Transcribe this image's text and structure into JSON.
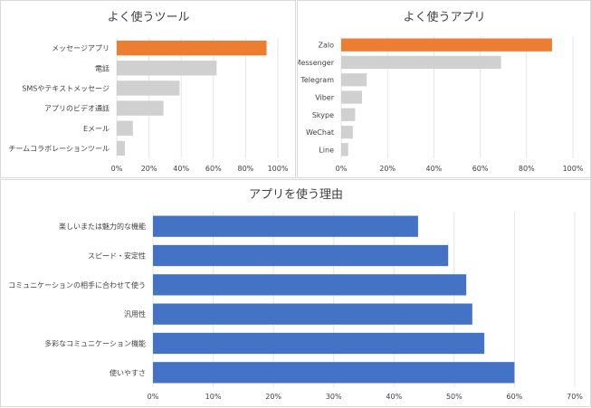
{
  "chart_data": [
    {
      "type": "bar",
      "orientation": "horizontal",
      "title": "よく使うツール",
      "categories": [
        "メッセージアプリ",
        "電話",
        "SMSやテキストメッセージ",
        "アプリのビデオ通話",
        "Eメール",
        "チームコラボレーションツール"
      ],
      "values": [
        93,
        62,
        39,
        29,
        10,
        5
      ],
      "xlim": [
        0,
        100
      ],
      "x_ticks": [
        "0%",
        "20%",
        "40%",
        "60%",
        "80%",
        "100%"
      ],
      "tick_values": [
        0,
        20,
        40,
        60,
        80,
        100
      ],
      "highlight_color": "#ed7d31",
      "bar_color": "#d0d0d0",
      "highlight_index": 0,
      "grid": true
    },
    {
      "type": "bar",
      "orientation": "horizontal",
      "title": "よく使うアプリ",
      "categories": [
        "Zalo",
        "Messenger",
        "Telegram",
        "Viber",
        "Skype",
        "WeChat",
        "Line"
      ],
      "values": [
        91,
        69,
        11,
        9,
        6,
        5,
        3
      ],
      "xlim": [
        0,
        100
      ],
      "x_ticks": [
        "0%",
        "20%",
        "40%",
        "60%",
        "80%",
        "100%"
      ],
      "tick_values": [
        0,
        20,
        40,
        60,
        80,
        100
      ],
      "highlight_color": "#ed7d31",
      "bar_color": "#d0d0d0",
      "highlight_index": 0,
      "grid": true
    },
    {
      "type": "bar",
      "orientation": "horizontal",
      "title": "アプリを使う理由",
      "categories": [
        "楽しいまたは魅力的な機能",
        "スピード・安定性",
        "コミュニケーションの相手に合わせて使う",
        "汎用性",
        "多彩なコミュニケーション機能",
        "使いやすさ"
      ],
      "values": [
        44,
        49,
        52,
        53,
        55,
        60
      ],
      "xlim": [
        0,
        70
      ],
      "x_ticks": [
        "0%",
        "10%",
        "20%",
        "30%",
        "40%",
        "50%",
        "60%",
        "70%"
      ],
      "tick_values": [
        0,
        10,
        20,
        30,
        40,
        50,
        60,
        70
      ],
      "bar_color": "#4472c4",
      "grid": true
    }
  ]
}
